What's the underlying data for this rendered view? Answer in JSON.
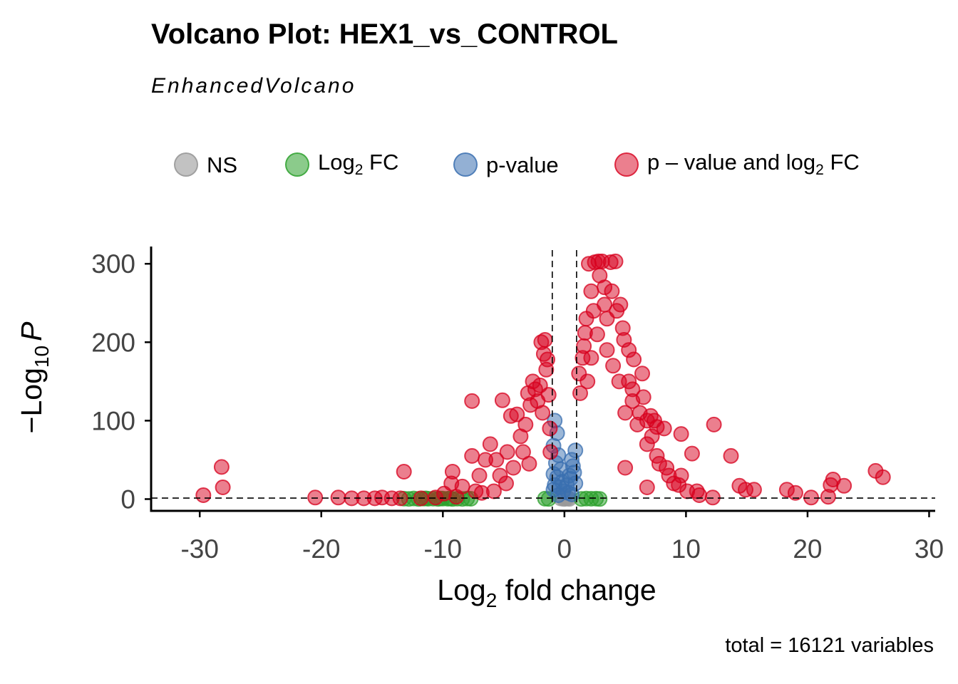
{
  "chart_data": {
    "type": "scatter",
    "title": "Volcano Plot: HEX1_vs_CONTROL",
    "subtitle": "EnhancedVolcano",
    "caption": "total = 16121 variables",
    "xlabel": {
      "main": "Log",
      "sub": "2",
      "rest": " fold change"
    },
    "ylabel": {
      "prefix": "−Log",
      "sub": "10",
      "italic": "P"
    },
    "xlim": [
      -34,
      30.5
    ],
    "ylim": [
      -15,
      322
    ],
    "x_ticks": [
      -30,
      -20,
      -10,
      0,
      10,
      20,
      30
    ],
    "x_tick_labels": [
      "-30",
      "-20",
      "-10",
      "0",
      "10",
      "20",
      "30"
    ],
    "y_ticks": [
      0,
      100,
      200,
      300
    ],
    "y_tick_labels": [
      "0",
      "100",
      "200",
      "300"
    ],
    "fc_cutoff": 1,
    "p_cutoff_line": 1.3,
    "legend_position": "top",
    "grid": false,
    "legend": [
      {
        "key": "ns",
        "label": "NS",
        "color": "#999999"
      },
      {
        "key": "fc",
        "label_main": "Log",
        "label_sub": "2",
        "label_rest": " FC",
        "color": "#2ca02c"
      },
      {
        "key": "p",
        "label": "p-value",
        "color": "#3a6fb0"
      },
      {
        "key": "both",
        "label_main": "p – value and log",
        "label_sub": "2",
        "label_rest": " FC",
        "color": "#d7001e"
      }
    ],
    "series": [
      {
        "name": "NS",
        "color": "#999999",
        "points": [
          [
            0.1,
            0.5
          ],
          [
            -0.1,
            1.2
          ],
          [
            0.05,
            3
          ],
          [
            -0.05,
            0.2
          ],
          [
            0.2,
            2
          ],
          [
            -0.2,
            4
          ],
          [
            0.3,
            1
          ],
          [
            -0.3,
            0.8
          ],
          [
            0,
            5
          ],
          [
            0.4,
            0.3
          ]
        ]
      },
      {
        "name": "Log2 FC",
        "color": "#2ca02c",
        "points": [
          [
            -13.2,
            0.5
          ],
          [
            -12.8,
            0.3
          ],
          [
            -12.4,
            0.8
          ],
          [
            -12,
            0.2
          ],
          [
            -11.6,
            0.6
          ],
          [
            -11.2,
            0.4
          ],
          [
            -10.8,
            0.5
          ],
          [
            -10.4,
            0.3
          ],
          [
            -10,
            0.6
          ],
          [
            -9.6,
            0.4
          ],
          [
            -9.2,
            0.2
          ],
          [
            -8.8,
            0.5
          ],
          [
            -8.4,
            0.3
          ],
          [
            -8,
            0.7
          ],
          [
            -11.4,
            0.9
          ],
          [
            -10.2,
            0.8
          ],
          [
            -9.4,
            0.9
          ],
          [
            -7.7,
            0.4
          ],
          [
            -1.3,
            0.3
          ],
          [
            -1.6,
            0.5
          ],
          [
            1.4,
            0.3
          ],
          [
            1.8,
            0.6
          ],
          [
            2.2,
            0.4
          ],
          [
            2.6,
            0.5
          ],
          [
            2.9,
            0.2
          ]
        ]
      },
      {
        "name": "p-value",
        "color": "#3a6fb0",
        "points": [
          [
            -0.8,
            100
          ],
          [
            -0.6,
            84
          ],
          [
            -0.9,
            68
          ],
          [
            -0.5,
            56
          ],
          [
            -0.7,
            46
          ],
          [
            -0.3,
            38
          ],
          [
            -0.9,
            32
          ],
          [
            -0.6,
            28
          ],
          [
            -0.2,
            22
          ],
          [
            -0.8,
            18
          ],
          [
            -0.4,
            15
          ],
          [
            -0.9,
            12
          ],
          [
            -0.1,
            10
          ],
          [
            0.2,
            18
          ],
          [
            0.5,
            26
          ],
          [
            0.8,
            34
          ],
          [
            0.6,
            50
          ],
          [
            0.9,
            62
          ],
          [
            0.4,
            30
          ],
          [
            0.7,
            42
          ],
          [
            0.3,
            8
          ],
          [
            0.9,
            20
          ],
          [
            -0.5,
            5
          ],
          [
            0.6,
            6
          ]
        ]
      },
      {
        "name": "p - value and log2 FC",
        "color": "#d7001e",
        "points": [
          [
            -29.7,
            5
          ],
          [
            -28.1,
            15
          ],
          [
            -28.2,
            41
          ],
          [
            -20.5,
            2
          ],
          [
            -18.6,
            2
          ],
          [
            -17.5,
            1
          ],
          [
            -16.5,
            1
          ],
          [
            -15.6,
            1
          ],
          [
            -15,
            2
          ],
          [
            -14.2,
            1
          ],
          [
            -13.2,
            35
          ],
          [
            -13.5,
            1
          ],
          [
            -9.9,
            7
          ],
          [
            -9.3,
            20
          ],
          [
            -9.2,
            35
          ],
          [
            -8.4,
            16
          ],
          [
            -7.6,
            125
          ],
          [
            -7.6,
            55
          ],
          [
            -7.3,
            10
          ],
          [
            -7,
            30
          ],
          [
            -6.5,
            50
          ],
          [
            -6.1,
            70
          ],
          [
            -5.6,
            50
          ],
          [
            -5.3,
            30
          ],
          [
            -5.1,
            126
          ],
          [
            -4.7,
            60
          ],
          [
            -4.4,
            106
          ],
          [
            -4.2,
            40
          ],
          [
            -3.9,
            108
          ],
          [
            -3.6,
            80
          ],
          [
            -3.2,
            95
          ],
          [
            -3,
            135
          ],
          [
            -2.8,
            120
          ],
          [
            -2.6,
            150
          ],
          [
            -2.4,
            140
          ],
          [
            -2.2,
            125
          ],
          [
            -2,
            145
          ],
          [
            -1.8,
            110
          ],
          [
            -1.9,
            200
          ],
          [
            -1.6,
            203
          ],
          [
            -1.7,
            185
          ],
          [
            -1.5,
            165
          ],
          [
            -1.4,
            178
          ],
          [
            -1.3,
            133
          ],
          [
            -1.2,
            90
          ],
          [
            -1.15,
            60
          ],
          [
            -3.4,
            60
          ],
          [
            -2.9,
            45
          ],
          [
            -4.8,
            20
          ],
          [
            -6.8,
            8
          ],
          [
            -5.8,
            10
          ],
          [
            -8.9,
            3
          ],
          [
            -11.8,
            1
          ],
          [
            -10.6,
            2
          ],
          [
            1.2,
            160
          ],
          [
            1.3,
            135
          ],
          [
            1.5,
            180
          ],
          [
            1.6,
            195
          ],
          [
            1.8,
            230
          ],
          [
            1.7,
            212
          ],
          [
            2,
            300
          ],
          [
            2.2,
            265
          ],
          [
            2.4,
            240
          ],
          [
            2.5,
            302
          ],
          [
            2.8,
            303
          ],
          [
            2.9,
            285
          ],
          [
            3.1,
            303
          ],
          [
            3.3,
            248
          ],
          [
            3.5,
            230
          ],
          [
            3.3,
            270
          ],
          [
            3.8,
            302
          ],
          [
            3.9,
            265
          ],
          [
            4.2,
            303
          ],
          [
            4.3,
            240
          ],
          [
            4.6,
            248
          ],
          [
            4.8,
            218
          ],
          [
            4.9,
            203
          ],
          [
            5.3,
            190
          ],
          [
            5.3,
            150
          ],
          [
            5.6,
            140
          ],
          [
            5.7,
            178
          ],
          [
            6.4,
            160
          ],
          [
            5.6,
            125
          ],
          [
            6.2,
            110
          ],
          [
            6.5,
            130
          ],
          [
            6.8,
            100
          ],
          [
            7.1,
            106
          ],
          [
            7.4,
            100
          ],
          [
            7.6,
            92
          ],
          [
            8.2,
            90
          ],
          [
            7.2,
            80
          ],
          [
            6.8,
            70
          ],
          [
            7.6,
            55
          ],
          [
            8.4,
            40
          ],
          [
            9.6,
            30
          ],
          [
            9.4,
            18
          ],
          [
            10.1,
            10
          ],
          [
            10.9,
            10
          ],
          [
            11.1,
            5
          ],
          [
            12.2,
            2
          ],
          [
            9.6,
            83
          ],
          [
            10.5,
            58
          ],
          [
            12.3,
            95
          ],
          [
            13.7,
            55
          ],
          [
            14.4,
            17
          ],
          [
            14.9,
            12
          ],
          [
            15.6,
            12
          ],
          [
            18.3,
            12
          ],
          [
            19,
            8
          ],
          [
            20.3,
            2
          ],
          [
            21.7,
            3
          ],
          [
            21.9,
            18
          ],
          [
            22.1,
            25
          ],
          [
            23,
            17
          ],
          [
            25.6,
            36
          ],
          [
            26.2,
            28
          ],
          [
            3.5,
            190
          ],
          [
            2.7,
            210
          ],
          [
            4,
            170
          ],
          [
            4.5,
            150
          ],
          [
            2.2,
            180
          ],
          [
            1.9,
            150
          ],
          [
            6,
            95
          ],
          [
            5,
            110
          ],
          [
            8.6,
            30
          ],
          [
            7.8,
            45
          ],
          [
            9,
            20
          ],
          [
            6.8,
            15
          ],
          [
            5,
            40
          ]
        ]
      }
    ]
  }
}
